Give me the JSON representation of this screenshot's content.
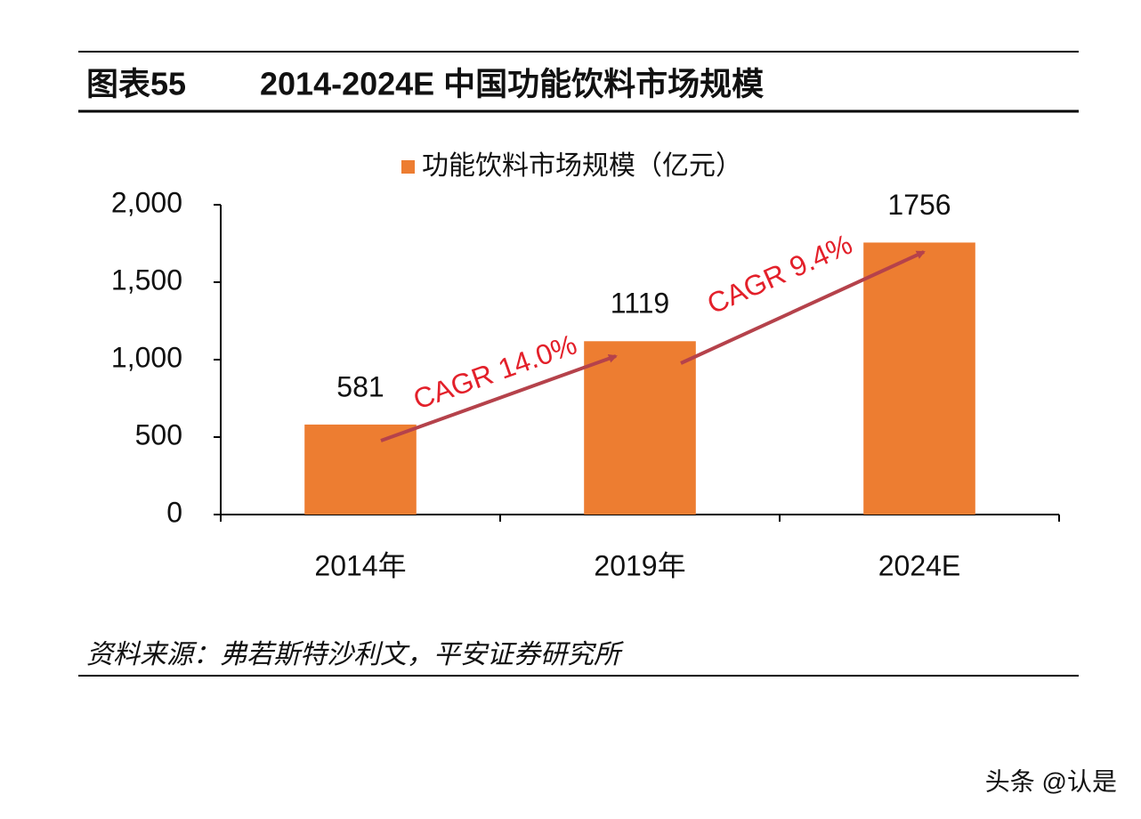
{
  "chart_data": {
    "type": "bar",
    "figure_label": "图表55",
    "title": "2014-2024E 中国功能饮料市场规模",
    "categories": [
      "2014年",
      "2019年",
      "2024E"
    ],
    "series": [
      {
        "name": "功能饮料市场规模（亿元）",
        "color": "#ed7d31",
        "values": [
          581,
          1119,
          1756
        ]
      }
    ],
    "ylim": [
      0,
      2000
    ],
    "yticks": [
      0,
      500,
      {
        "value": 1000,
        "label": "1,000"
      },
      {
        "value": 1500,
        "label": "1,500"
      },
      {
        "value": 2000,
        "label": "2,000"
      }
    ],
    "grid": false,
    "legend": "top",
    "annotations": [
      "CAGR 14.0%",
      "CAGR 9.4%"
    ],
    "annotation_color": "#e3202a",
    "arrow_color": "#b5424b",
    "source": "资料来源：弗若斯特沙利文，平安证券研究所",
    "watermark": "头条 @认是"
  }
}
